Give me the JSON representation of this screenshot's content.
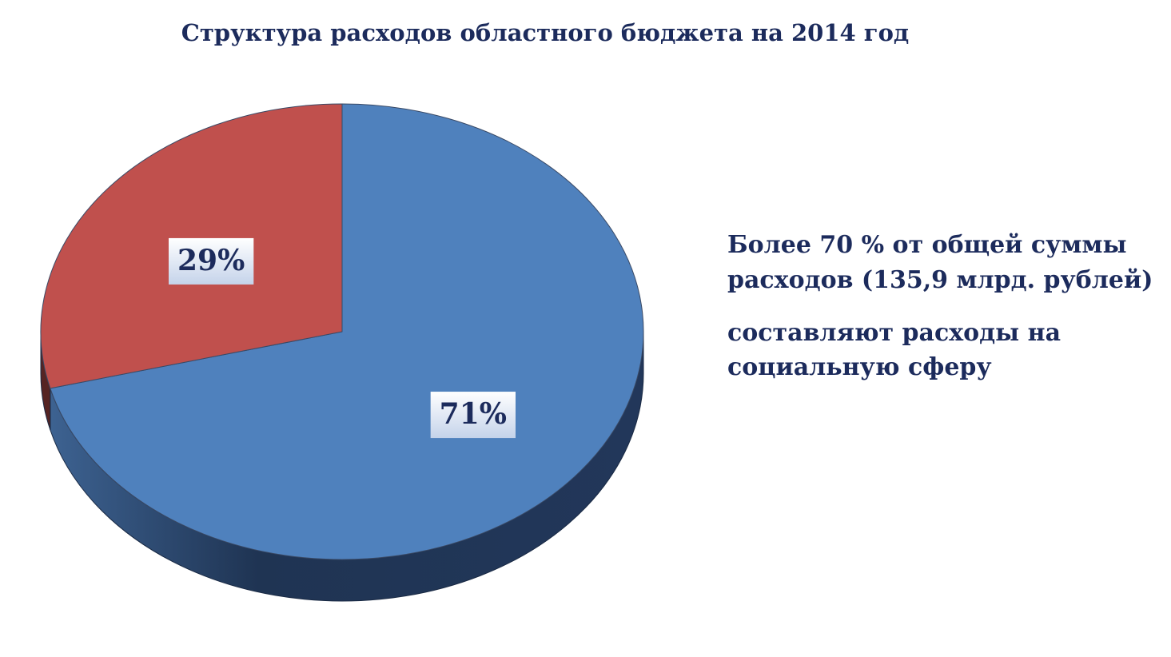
{
  "chart_data": {
    "type": "pie",
    "title": "Структура расходов областного бюджета на 2014 год",
    "series": [
      {
        "values": [
          71,
          29
        ],
        "value_labels": [
          "71%",
          "29%"
        ],
        "colors": [
          "#4f81bd",
          "#c0504d"
        ]
      }
    ],
    "annotations": [
      [
        "Более 70 % от общей суммы",
        "расходов (135,9 млрд. рублей)"
      ],
      [
        "составляют расходы на",
        "социальную сферу"
      ]
    ]
  }
}
